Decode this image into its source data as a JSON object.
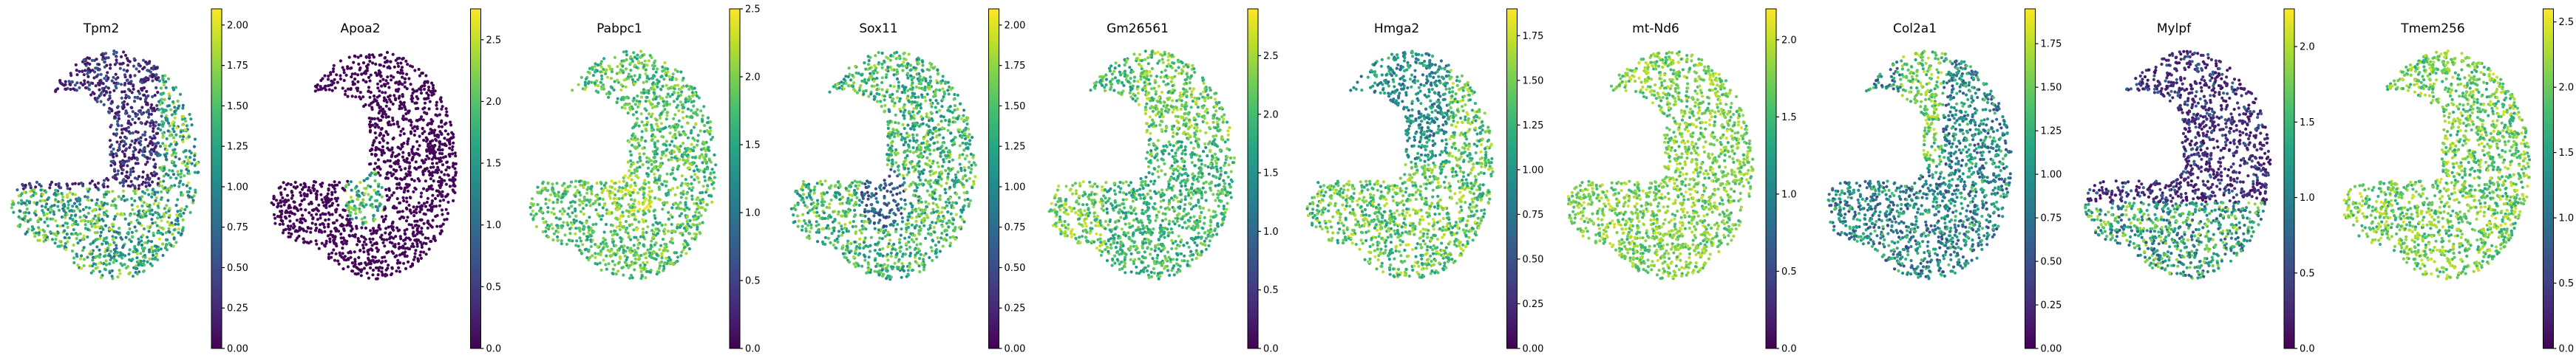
{
  "chart_data": [
    {
      "type": "scatter",
      "title": "Tpm2",
      "colormap": "viridis",
      "colorbar": {
        "min": 0.0,
        "max": 2.1,
        "ticks": [
          "0.00",
          "0.25",
          "0.50",
          "0.75",
          "1.00",
          "1.25",
          "1.50",
          "1.75",
          "2.00"
        ]
      }
    },
    {
      "type": "scatter",
      "title": "Apoa2",
      "colormap": "viridis",
      "colorbar": {
        "min": 0.0,
        "max": 2.75,
        "ticks": [
          "0.0",
          "0.5",
          "1.0",
          "1.5",
          "2.0",
          "2.5"
        ]
      }
    },
    {
      "type": "scatter",
      "title": "Pabpc1",
      "colormap": "viridis",
      "colorbar": {
        "min": 0.0,
        "max": 2.5,
        "ticks": [
          "0.0",
          "0.5",
          "1.0",
          "1.5",
          "2.0",
          "2.5"
        ]
      }
    },
    {
      "type": "scatter",
      "title": "Sox11",
      "colormap": "viridis",
      "colorbar": {
        "min": 0.0,
        "max": 2.1,
        "ticks": [
          "0.00",
          "0.25",
          "0.50",
          "0.75",
          "1.00",
          "1.25",
          "1.50",
          "1.75",
          "2.00"
        ]
      }
    },
    {
      "type": "scatter",
      "title": "Gm26561",
      "colormap": "viridis",
      "colorbar": {
        "min": 0.0,
        "max": 2.9,
        "ticks": [
          "0.0",
          "0.5",
          "1.0",
          "1.5",
          "2.0",
          "2.5"
        ]
      }
    },
    {
      "type": "scatter",
      "title": "Hmga2",
      "colormap": "viridis",
      "colorbar": {
        "min": 0.0,
        "max": 1.9,
        "ticks": [
          "0.00",
          "0.25",
          "0.50",
          "0.75",
          "1.00",
          "1.25",
          "1.50",
          "1.75"
        ]
      }
    },
    {
      "type": "scatter",
      "title": "mt-Nd6",
      "colormap": "viridis",
      "colorbar": {
        "min": 0.0,
        "max": 2.2,
        "ticks": [
          "0.0",
          "0.5",
          "1.0",
          "1.5",
          "2.0"
        ]
      }
    },
    {
      "type": "scatter",
      "title": "Col2a1",
      "colormap": "viridis",
      "colorbar": {
        "min": 0.0,
        "max": 1.95,
        "ticks": [
          "0.00",
          "0.25",
          "0.50",
          "0.75",
          "1.00",
          "1.25",
          "1.50",
          "1.75"
        ]
      }
    },
    {
      "type": "scatter",
      "title": "Mylpf",
      "colormap": "viridis",
      "colorbar": {
        "min": 0.0,
        "max": 2.25,
        "ticks": [
          "0.0",
          "0.5",
          "1.0",
          "1.5",
          "2.0"
        ]
      }
    },
    {
      "type": "scatter",
      "title": "Tmem256",
      "colormap": "viridis",
      "colorbar": {
        "min": 0.0,
        "max": 2.6,
        "ticks": [
          "0.0",
          "0.5",
          "1.0",
          "1.5",
          "2.0",
          "2.5"
        ]
      }
    }
  ]
}
